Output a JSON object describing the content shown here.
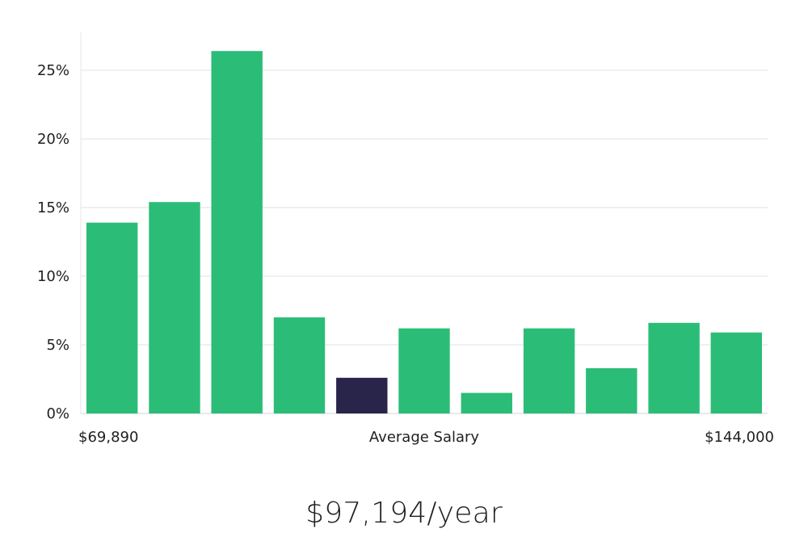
{
  "chart_data": {
    "type": "bar",
    "title": "",
    "xlabel": "Average Salary",
    "ylabel": "",
    "x_range_labels": {
      "min": "$69,890",
      "max": "$144,000"
    },
    "ylim": [
      0,
      28
    ],
    "yticks": [
      0,
      5,
      10,
      15,
      20,
      25
    ],
    "ytick_labels": [
      "0%",
      "5%",
      "10%",
      "15%",
      "20%",
      "25%"
    ],
    "grid": true,
    "values": [
      13.9,
      15.4,
      26.4,
      7.0,
      2.6,
      6.2,
      1.5,
      6.2,
      3.3,
      6.6,
      5.9
    ],
    "highlight_index": 4,
    "colors": {
      "bar": "#2bbd77",
      "highlight": "#28244a",
      "grid": "#e2e2e2",
      "axis": "#e6e6e6"
    },
    "headline": "$97,194/year"
  }
}
